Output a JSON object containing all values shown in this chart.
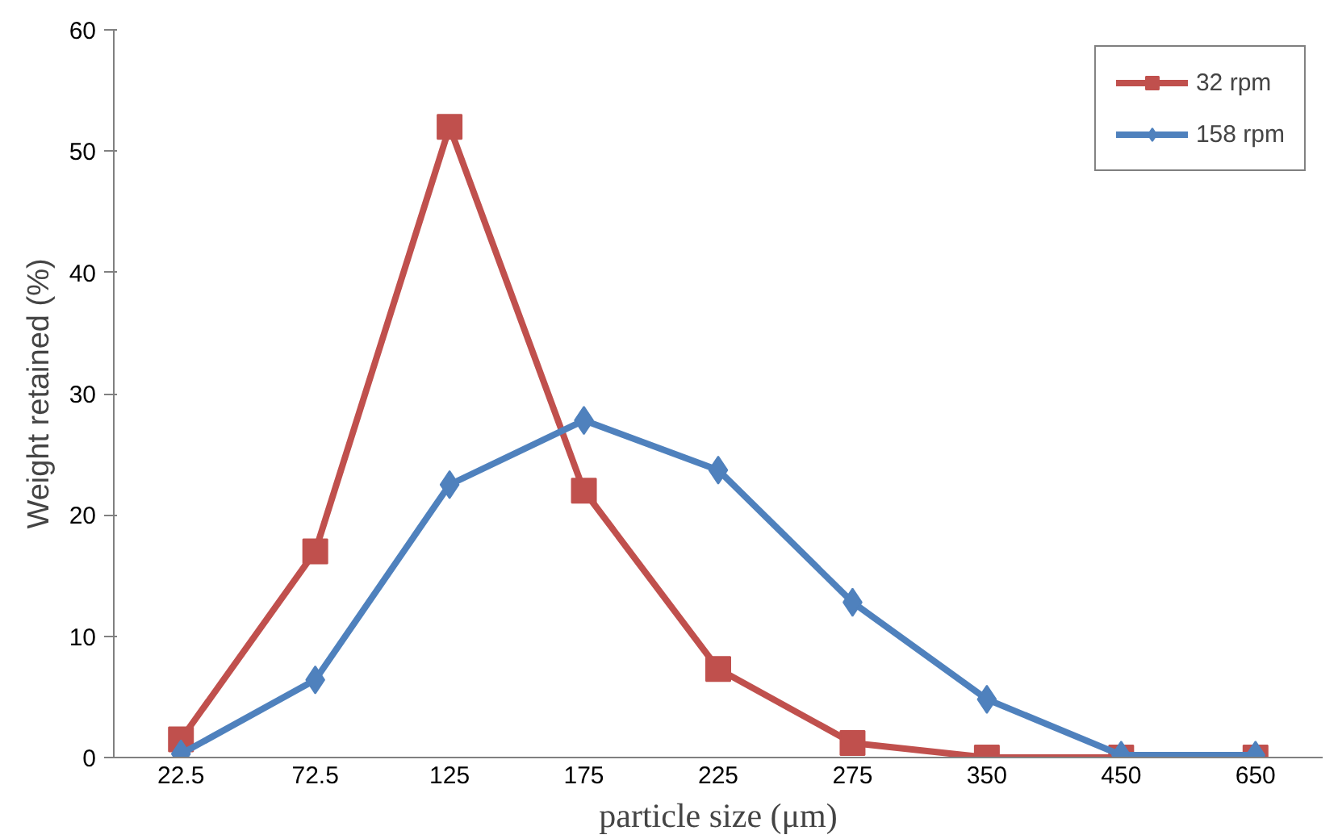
{
  "chart_data": {
    "type": "line",
    "xlabel": "particle size (μm)",
    "ylabel": "Weight retained (%)",
    "categories": [
      "22.5",
      "72.5",
      "125",
      "175",
      "225",
      "275",
      "350",
      "450",
      "650"
    ],
    "series": [
      {
        "name": "32 rpm",
        "color": "#c0504d",
        "marker": "square",
        "values": [
          1.5,
          17,
          52,
          22,
          7.3,
          1.2,
          0,
          0,
          0
        ]
      },
      {
        "name": "158 rpm",
        "color": "#4f81bd",
        "marker": "diamond",
        "values": [
          0.3,
          6.4,
          22.5,
          27.8,
          23.7,
          12.8,
          4.8,
          0.2,
          0.2
        ]
      }
    ],
    "ylim": [
      0,
      60
    ],
    "yticks": [
      0,
      10,
      20,
      30,
      40,
      50,
      60
    ],
    "grid": false,
    "legend": "top right"
  }
}
